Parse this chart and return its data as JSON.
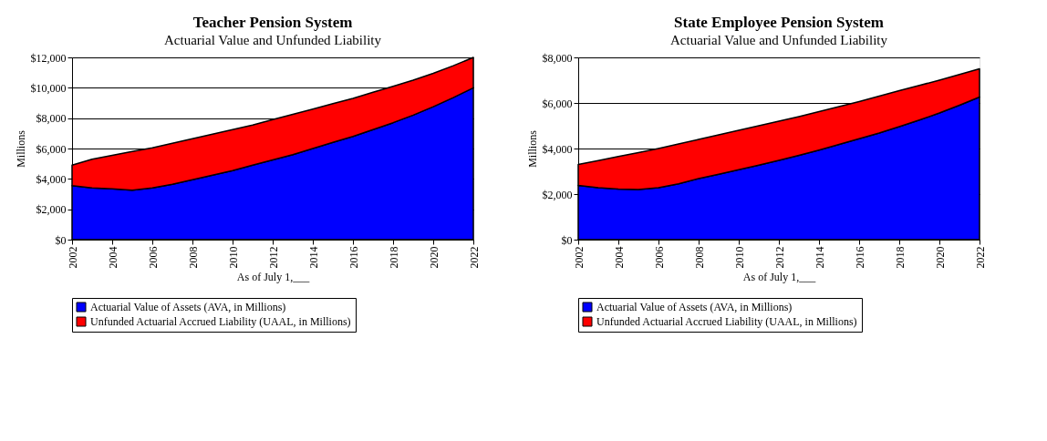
{
  "chart_data": [
    {
      "type": "area",
      "stacked": true,
      "title": "Teacher Pension System",
      "subtitle": "Actuarial Value and Unfunded Liability",
      "xlabel": "As of July 1,___",
      "ylabel": "Millions",
      "x": [
        2002,
        2003,
        2004,
        2005,
        2006,
        2007,
        2008,
        2009,
        2010,
        2011,
        2012,
        2013,
        2014,
        2015,
        2016,
        2017,
        2018,
        2019,
        2020,
        2021,
        2022
      ],
      "series": [
        {
          "name": "Actuarial Value of Assets (AVA, in Millions)",
          "color": "#0000ff",
          "values": [
            3550,
            3400,
            3350,
            3250,
            3400,
            3650,
            3950,
            4250,
            4550,
            4900,
            5250,
            5600,
            6000,
            6400,
            6800,
            7250,
            7700,
            8200,
            8750,
            9350,
            10000
          ]
        },
        {
          "name": "Unfunded Actuarial Accrued Liability (UAAL, in Millions)",
          "color": "#ff0000",
          "values": [
            1350,
            1900,
            2200,
            2550,
            2650,
            2700,
            2700,
            2700,
            2700,
            2650,
            2650,
            2650,
            2600,
            2550,
            2500,
            2450,
            2400,
            2300,
            2200,
            2100,
            2000
          ]
        }
      ],
      "xlim": [
        2002,
        2022
      ],
      "xticks": [
        2002,
        2004,
        2006,
        2008,
        2010,
        2012,
        2014,
        2016,
        2018,
        2020,
        2022
      ],
      "ylim": [
        0,
        12000
      ],
      "yticks": [
        {
          "value": 0,
          "label": "$0"
        },
        {
          "value": 2000,
          "label": "$2,000"
        },
        {
          "value": 4000,
          "label": "$4,000"
        },
        {
          "value": 6000,
          "label": "$6,000"
        },
        {
          "value": 8000,
          "label": "$8,000"
        },
        {
          "value": 10000,
          "label": "$10,000"
        },
        {
          "value": 12000,
          "label": "$12,000"
        }
      ],
      "grid": "y",
      "legend": "bottom"
    },
    {
      "type": "area",
      "stacked": true,
      "title": "State Employee Pension System",
      "subtitle": "Actuarial Value and Unfunded Liability",
      "xlabel": "As of July 1,___",
      "ylabel": "Millions",
      "x": [
        2002,
        2003,
        2004,
        2005,
        2006,
        2007,
        2008,
        2009,
        2010,
        2011,
        2012,
        2013,
        2014,
        2015,
        2016,
        2017,
        2018,
        2019,
        2020,
        2021,
        2022
      ],
      "series": [
        {
          "name": "Actuarial Value of Assets (AVA, in Millions)",
          "color": "#0000ff",
          "values": [
            2380,
            2280,
            2220,
            2200,
            2280,
            2450,
            2680,
            2870,
            3070,
            3270,
            3480,
            3700,
            3930,
            4180,
            4430,
            4680,
            4960,
            5250,
            5560,
            5900,
            6260
          ]
        },
        {
          "name": "Unfunded Actuarial Accrued Liability (UAAL, in Millions)",
          "color": "#ff0000",
          "values": [
            920,
            1190,
            1430,
            1620,
            1720,
            1750,
            1720,
            1730,
            1730,
            1730,
            1720,
            1700,
            1690,
            1660,
            1630,
            1620,
            1580,
            1520,
            1440,
            1350,
            1240
          ]
        }
      ],
      "xlim": [
        2002,
        2022
      ],
      "xticks": [
        2002,
        2004,
        2006,
        2008,
        2010,
        2012,
        2014,
        2016,
        2018,
        2020,
        2022
      ],
      "ylim": [
        0,
        8000
      ],
      "yticks": [
        {
          "value": 0,
          "label": "$0"
        },
        {
          "value": 2000,
          "label": "$2,000"
        },
        {
          "value": 4000,
          "label": "$4,000"
        },
        {
          "value": 6000,
          "label": "$6,000"
        },
        {
          "value": 8000,
          "label": "$8,000"
        }
      ],
      "grid": "y",
      "legend": "bottom"
    }
  ]
}
